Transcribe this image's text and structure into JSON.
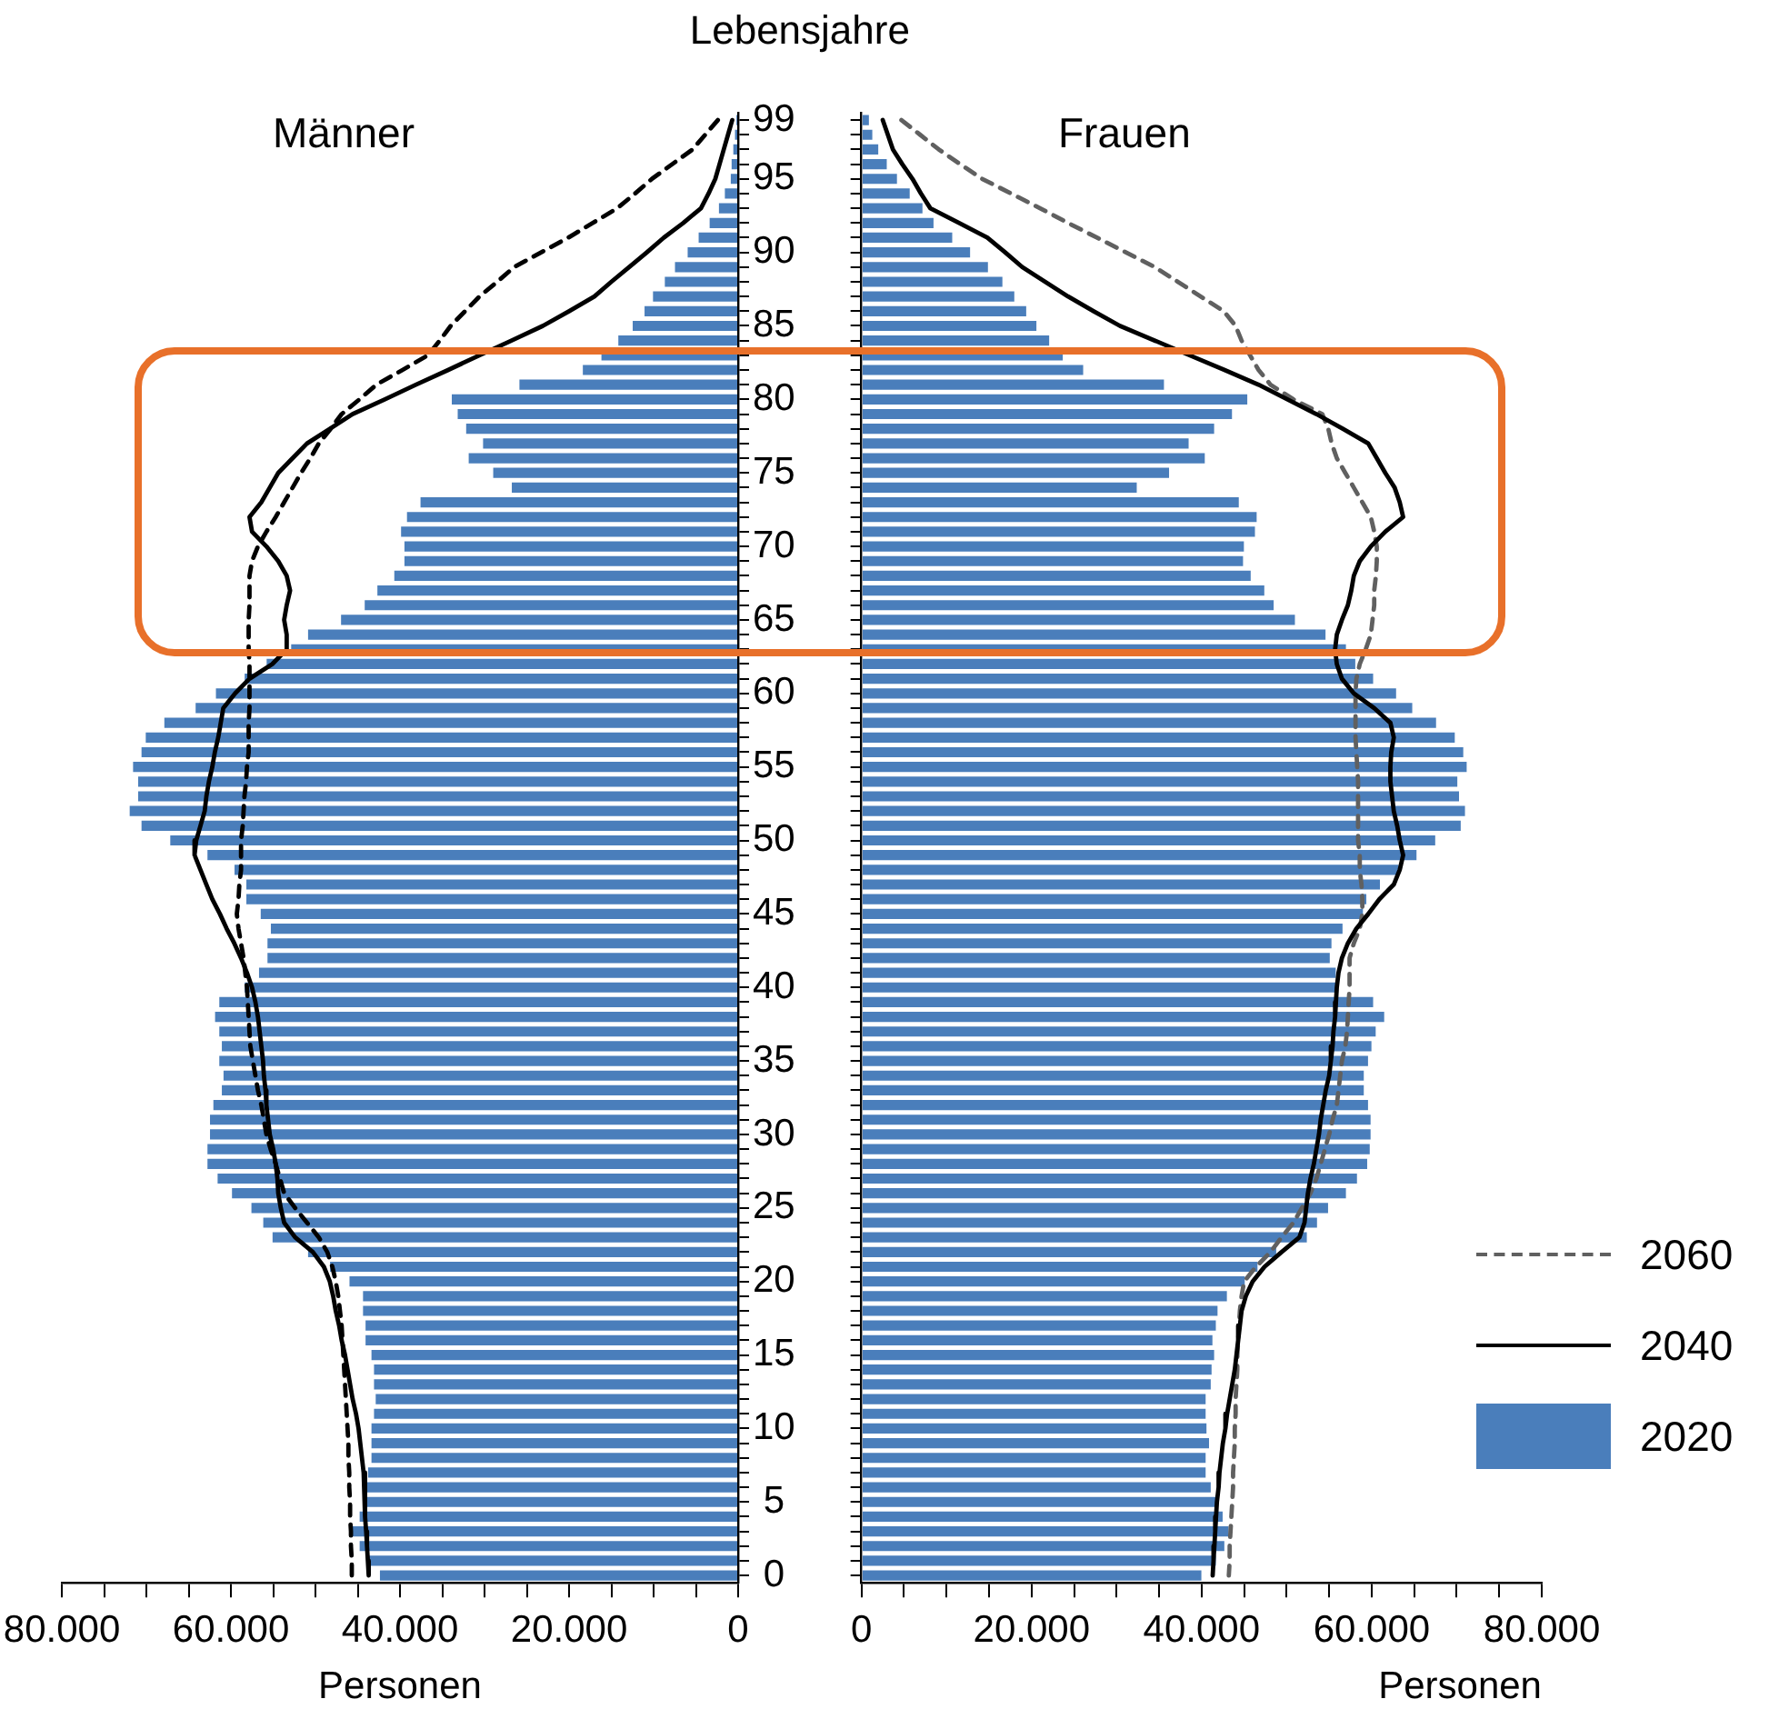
{
  "chart_data": [
    {
      "type": "bar",
      "orientation": "horizontal",
      "title": "Männer",
      "xlabel": "Personen",
      "ylabel": "Lebensjahre",
      "legend": false,
      "grid": false,
      "marker": "none",
      "categories": [
        "99",
        null,
        null,
        null,
        "95",
        null,
        null,
        null,
        null,
        "90",
        null,
        null,
        null,
        null,
        "85",
        null,
        null,
        null,
        null,
        "80",
        null,
        null,
        null,
        null,
        "75",
        null,
        null,
        null,
        null,
        "70",
        null,
        null,
        null,
        null,
        "65",
        null,
        null,
        null,
        null,
        "60",
        null,
        null,
        null,
        null,
        "55",
        null,
        null,
        null,
        null,
        "50",
        null,
        null,
        null,
        null,
        "45",
        null,
        null,
        null,
        null,
        "40",
        null,
        null,
        null,
        null,
        "35",
        null,
        null,
        null,
        null,
        "30",
        null,
        null,
        null,
        null,
        "25",
        null,
        null,
        null,
        null,
        "20",
        null,
        null,
        null,
        null,
        "15",
        null,
        null,
        null,
        null,
        "10",
        null,
        null,
        null,
        null,
        "5",
        null,
        null,
        null,
        null,
        "0"
      ],
      "xlim": [
        80000,
        0
      ],
      "xticks": [
        0,
        {
          "value": 5000,
          "label": null
        },
        {
          "value": 10000,
          "label": null
        },
        {
          "value": 15000,
          "label": null
        },
        {
          "value": 20000,
          "label": "20.000"
        },
        {
          "value": 25000,
          "label": null
        },
        {
          "value": 30000,
          "label": null
        },
        {
          "value": 35000,
          "label": null
        },
        {
          "value": 40000,
          "label": "40.000"
        },
        {
          "value": 45000,
          "label": null
        },
        {
          "value": 50000,
          "label": null
        },
        {
          "value": 55000,
          "label": null
        },
        {
          "value": 60000,
          "label": "60.000"
        },
        {
          "value": 65000,
          "label": null
        },
        {
          "value": 70000,
          "label": null
        },
        {
          "value": 75000,
          "label": null
        },
        {
          "value": 80000,
          "label": "80.000"
        }
      ],
      "series": [
        {
          "color": "#4a7ebb",
          "values": [
            300,
            500,
            700,
            900,
            1000,
            1700,
            2400,
            3500,
            4800,
            6100,
            7600,
            8800,
            10200,
            11200,
            12600,
            14300,
            16300,
            18500,
            26000,
            34000,
            33300,
            32300,
            30300,
            32000,
            29100,
            26900,
            37700,
            39300,
            40000,
            39600,
            39600,
            40800,
            42800,
            44300,
            47100,
            51000,
            53000,
            55900,
            58500,
            61900,
            64300,
            68000,
            70200,
            70700,
            71700,
            71100,
            71100,
            72100,
            70700,
            67300,
            62900,
            59700,
            58300,
            58300,
            56600,
            55400,
            55800,
            55800,
            56800,
            58500,
            61500,
            62000,
            61500,
            61200,
            61500,
            61000,
            61200,
            62200,
            62600,
            62600,
            62900,
            62900,
            61700,
            60000,
            57700,
            56300,
            55200,
            51000,
            48400,
            46100,
            44500,
            44500,
            44200,
            44200,
            43500,
            43200,
            43200,
            43000,
            43200,
            43500,
            43500,
            43500,
            43900,
            44200,
            44200,
            44900,
            45900,
            44900,
            43900,
            42500
          ]
        },
        {
          "type": "line",
          "color": "#000000",
          "line_style": "solid",
          "values": [
            700,
            1200,
            1700,
            2200,
            2700,
            3500,
            4400,
            6500,
            8800,
            10800,
            12900,
            15000,
            17000,
            20000,
            23100,
            26800,
            30600,
            34300,
            38100,
            41800,
            45600,
            48300,
            51000,
            52700,
            54400,
            55400,
            56400,
            57800,
            57500,
            55800,
            54400,
            53400,
            53000,
            53400,
            53700,
            53400,
            53400,
            55100,
            57800,
            59500,
            60900,
            61200,
            61500,
            61900,
            62200,
            62600,
            62900,
            63100,
            63600,
            64100,
            64300,
            63600,
            62900,
            62200,
            61300,
            60500,
            59600,
            58800,
            58100,
            57500,
            57100,
            56800,
            56600,
            56400,
            56200,
            56100,
            55900,
            55800,
            55600,
            55400,
            55000,
            54700,
            54500,
            54400,
            54100,
            53700,
            52400,
            50300,
            49000,
            48300,
            47900,
            47600,
            47200,
            46900,
            46500,
            46200,
            45900,
            45600,
            45200,
            44900,
            44700,
            44500,
            44300,
            44200,
            44100,
            44100,
            44000,
            43900,
            43800,
            43700
          ]
        },
        {
          "type": "line",
          "color": "#000000",
          "line_style": "dashed",
          "values": [
            2400,
            3900,
            5400,
            7800,
            10200,
            12200,
            14300,
            17200,
            20100,
            23300,
            26500,
            28500,
            30600,
            32300,
            34000,
            35300,
            36700,
            39700,
            42800,
            44800,
            46900,
            48200,
            49600,
            50600,
            51700,
            52700,
            53700,
            54700,
            55800,
            56800,
            57500,
            57800,
            57800,
            57800,
            57900,
            57900,
            57900,
            57800,
            57800,
            57800,
            57800,
            57900,
            57900,
            57900,
            58100,
            58200,
            58400,
            58500,
            58600,
            58800,
            58800,
            58800,
            59000,
            59100,
            59300,
            59100,
            58800,
            58500,
            58300,
            58100,
            58000,
            57900,
            57800,
            57700,
            57400,
            57100,
            56800,
            56400,
            56100,
            55800,
            55300,
            54700,
            54200,
            53700,
            52400,
            51000,
            49600,
            48600,
            48000,
            47600,
            47300,
            47100,
            46900,
            46800,
            46700,
            46600,
            46500,
            46400,
            46300,
            46200,
            46100,
            46100,
            46000,
            46000,
            45900,
            45900,
            45800,
            45800,
            45700,
            45700
          ]
        }
      ]
    },
    {
      "type": "bar",
      "orientation": "horizontal",
      "title": "Frauen",
      "xlabel": "Personen",
      "legend": "bottom right",
      "grid": false,
      "marker": "none",
      "tick_labels": "x",
      "categories": [
        "99",
        null,
        null,
        null,
        "95",
        null,
        null,
        null,
        null,
        "90",
        null,
        null,
        null,
        null,
        "85",
        null,
        null,
        null,
        null,
        "80",
        null,
        null,
        null,
        null,
        "75",
        null,
        null,
        null,
        null,
        "70",
        null,
        null,
        null,
        null,
        "65",
        null,
        null,
        null,
        null,
        "60",
        null,
        null,
        null,
        null,
        "55",
        null,
        null,
        null,
        null,
        "50",
        null,
        null,
        null,
        null,
        "45",
        null,
        null,
        null,
        null,
        "40",
        null,
        null,
        null,
        null,
        "35",
        null,
        null,
        null,
        null,
        "30",
        null,
        null,
        null,
        null,
        "25",
        null,
        null,
        null,
        null,
        "20",
        null,
        null,
        null,
        null,
        "15",
        null,
        null,
        null,
        null,
        "10",
        null,
        null,
        null,
        null,
        "5",
        null,
        null,
        null,
        null,
        "0"
      ],
      "xlim": [
        0,
        80000
      ],
      "xticks": [
        0,
        {
          "value": 5000,
          "label": null
        },
        {
          "value": 10000,
          "label": null
        },
        {
          "value": 15000,
          "label": null
        },
        {
          "value": 20000,
          "label": "20.000"
        },
        {
          "value": 25000,
          "label": null
        },
        {
          "value": 30000,
          "label": null
        },
        {
          "value": 35000,
          "label": null
        },
        {
          "value": 40000,
          "label": "40.000"
        },
        {
          "value": 45000,
          "label": null
        },
        {
          "value": 50000,
          "label": null
        },
        {
          "value": 55000,
          "label": null
        },
        {
          "value": 60000,
          "label": "60.000"
        },
        {
          "value": 65000,
          "label": null
        },
        {
          "value": 70000,
          "label": null
        },
        {
          "value": 75000,
          "label": null
        },
        {
          "value": 80000,
          "label": "80.000"
        }
      ],
      "series": [
        {
          "name": "2020",
          "color": "#4a7ebb",
          "values": [
            1000,
            1400,
            2100,
            3100,
            4300,
            5800,
            7300,
            8600,
            10800,
            12900,
            15000,
            16700,
            18100,
            19500,
            20700,
            22200,
            23800,
            26200,
            35700,
            45500,
            43700,
            41600,
            38600,
            40500,
            36300,
            32500,
            44500,
            46600,
            46400,
            45100,
            45000,
            45900,
            47500,
            48600,
            51100,
            54700,
            57100,
            58200,
            60300,
            63000,
            64900,
            67700,
            69900,
            70900,
            71300,
            70200,
            70400,
            71100,
            70600,
            67600,
            65400,
            63300,
            61100,
            59500,
            59100,
            56700,
            55400,
            55200,
            55900,
            56200,
            60300,
            61600,
            60600,
            60100,
            59700,
            59200,
            59200,
            59700,
            60000,
            60000,
            59900,
            59600,
            58400,
            57100,
            55000,
            53700,
            52500,
            48900,
            46700,
            45200,
            43100,
            42000,
            41800,
            41400,
            41600,
            41300,
            41200,
            40600,
            40600,
            40700,
            41000,
            40600,
            40600,
            41200,
            41800,
            42600,
            43300,
            42800,
            41800,
            40100
          ]
        },
        {
          "type": "line",
          "name": "2040",
          "color": "#000000",
          "line_style": "solid",
          "values": [
            2500,
            3100,
            3700,
            4800,
            6000,
            7000,
            8100,
            11500,
            14800,
            16900,
            18900,
            21600,
            24300,
            27300,
            30400,
            34500,
            38600,
            42700,
            46700,
            50100,
            53500,
            56600,
            59600,
            60600,
            61600,
            62700,
            63300,
            63700,
            61600,
            59900,
            58600,
            57900,
            57600,
            57200,
            56500,
            55900,
            55700,
            55900,
            56500,
            57900,
            60300,
            62200,
            62600,
            62300,
            62200,
            62200,
            62400,
            62600,
            63000,
            63300,
            63700,
            63300,
            62600,
            60900,
            59600,
            58200,
            57200,
            56500,
            56100,
            55900,
            55800,
            55700,
            55500,
            55400,
            55200,
            55000,
            54600,
            54300,
            54000,
            53800,
            53500,
            53200,
            52800,
            52500,
            52300,
            52100,
            51500,
            49400,
            47400,
            46000,
            45200,
            44700,
            44500,
            44300,
            44100,
            43900,
            43600,
            43300,
            43000,
            42800,
            42500,
            42300,
            42100,
            42000,
            41800,
            41700,
            41600,
            41500,
            41400,
            41300
          ]
        },
        {
          "type": "line",
          "name": "2060",
          "color": "#606060",
          "line_style": "dashed",
          "values": [
            4700,
            6900,
            9100,
            11600,
            14200,
            17600,
            21000,
            24300,
            27700,
            31100,
            34500,
            37200,
            39900,
            42600,
            44000,
            44700,
            45700,
            46700,
            48100,
            50800,
            54200,
            54900,
            55300,
            55900,
            56900,
            57900,
            58900,
            59900,
            60300,
            60600,
            60600,
            60500,
            60300,
            60300,
            60100,
            59900,
            59300,
            58600,
            58200,
            58100,
            58100,
            58100,
            58100,
            58200,
            58300,
            58400,
            58400,
            58400,
            58400,
            58400,
            58600,
            58600,
            58800,
            58900,
            58900,
            58600,
            57900,
            57400,
            57400,
            57400,
            57300,
            57200,
            57100,
            56900,
            56500,
            56300,
            56100,
            55900,
            55400,
            55000,
            54500,
            54000,
            53500,
            52800,
            51800,
            50800,
            49400,
            48100,
            46400,
            45000,
            44700,
            44500,
            44400,
            44300,
            44200,
            44200,
            44100,
            44000,
            44000,
            43900,
            43900,
            43800,
            43700,
            43700,
            43600,
            43500,
            43400,
            43300,
            43300,
            43200
          ]
        }
      ]
    }
  ]
}
